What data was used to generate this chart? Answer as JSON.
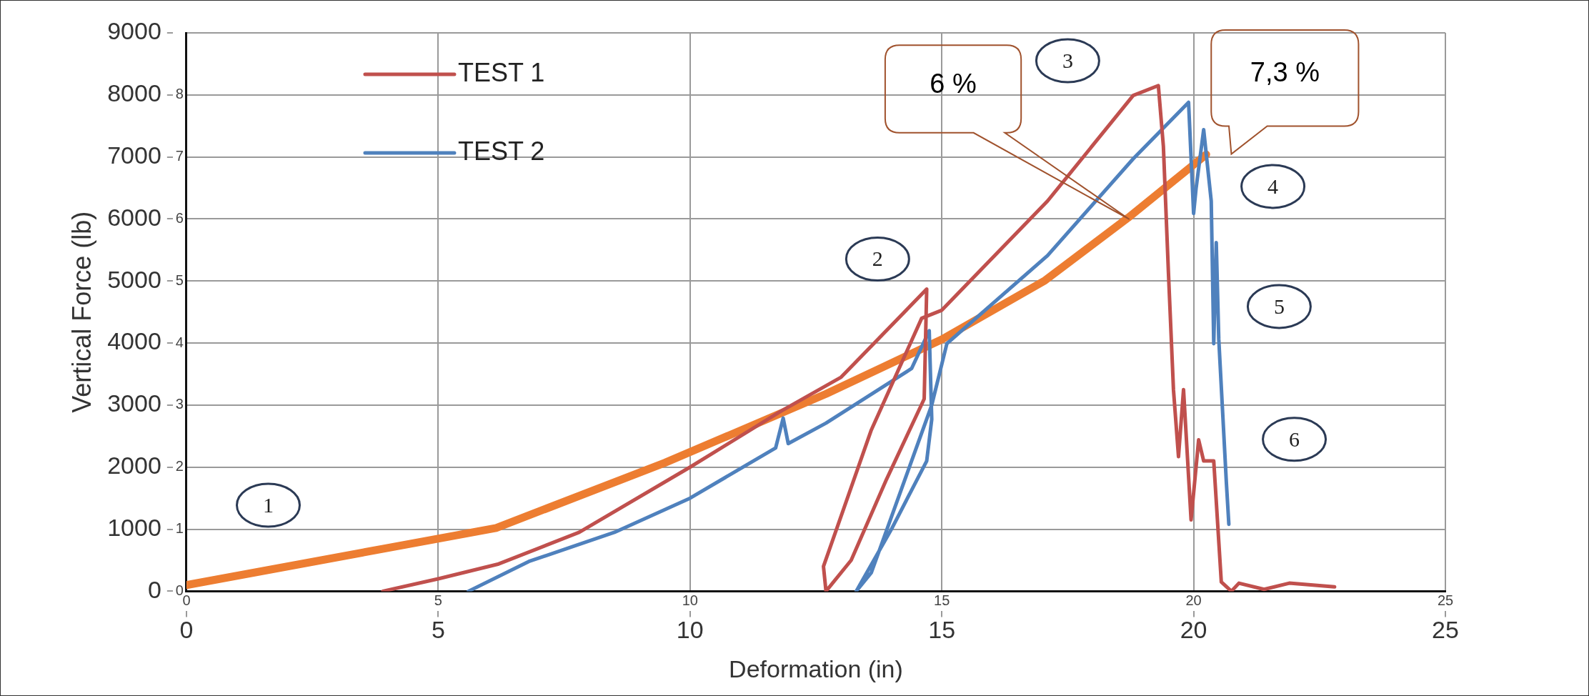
{
  "chart_data": {
    "type": "line",
    "xlabel": "Deformation (in)",
    "ylabel": "Vertical Force (lb)",
    "xlim": [
      0,
      25
    ],
    "xticks": [
      0,
      5,
      10,
      15,
      20,
      25
    ],
    "ylim": [
      0,
      9000
    ],
    "yticks": [
      0,
      1000,
      2000,
      3000,
      4000,
      5000,
      6000,
      7000,
      8000,
      9000
    ],
    "y2lim": [
      0,
      9
    ],
    "y2ticks": [
      0,
      1,
      2,
      3,
      4,
      5,
      6,
      7,
      8
    ],
    "x2lim": [
      0,
      25
    ],
    "x2ticks": [
      0,
      5,
      10,
      15,
      20,
      25
    ],
    "grid": true,
    "legend": "top left",
    "marker": "none",
    "line_style": "solid",
    "series": [
      {
        "name": "TEST 1",
        "color": "#c0504d",
        "x": [
          3.9,
          5,
          6.2,
          7.8,
          10,
          11.8,
          13,
          14.7,
          14.65,
          13.9,
          13.2,
          12.7,
          12.65,
          13.6,
          14.6,
          15,
          17.1,
          18.8,
          19.3,
          19.4,
          19.5,
          19.6,
          19.7,
          19.8,
          19.95,
          20.1,
          20.2,
          20.4,
          20.55,
          20.75,
          20.9,
          21.4,
          21.9,
          22.8
        ],
        "values": [
          0,
          200,
          440,
          950,
          2000,
          2900,
          3450,
          4870,
          3100,
          1800,
          500,
          0,
          400,
          2600,
          4400,
          4530,
          6290,
          7990,
          8150,
          7170,
          5140,
          3250,
          2170,
          3250,
          1150,
          2440,
          2100,
          2100,
          150,
          0,
          130,
          30,
          130,
          70
        ]
      },
      {
        "name": "TEST 2",
        "color": "#4f81bd",
        "x": [
          5.6,
          6.8,
          8.5,
          10,
          11.7,
          11.85,
          11.95,
          12.7,
          14.4,
          14.75,
          14.8,
          14.7,
          14.0,
          13.3,
          13.6,
          14.8,
          15.1,
          17.1,
          18.8,
          19.9,
          20,
          20.05,
          20.2,
          20.35,
          20.4,
          20.45,
          20.5,
          20.65,
          20.7
        ],
        "values": [
          0,
          480,
          950,
          1500,
          2310,
          2790,
          2380,
          2710,
          3590,
          4200,
          2770,
          2100,
          1000,
          0,
          300,
          3000,
          3990,
          5410,
          6970,
          7880,
          6090,
          6500,
          7440,
          6290,
          3990,
          5620,
          4060,
          1760,
          1080
        ]
      },
      {
        "color": "#ed7d31",
        "axis": "y2",
        "x": [
          0,
          6.15,
          9.5,
          12.7,
          15,
          17.05,
          18.7,
          20.25
        ],
        "values": [
          0.1,
          1.02,
          2.07,
          3.18,
          4.06,
          5.01,
          6.02,
          7.04
        ]
      }
    ],
    "annotations": [
      "1",
      "2",
      "3",
      "4",
      "5",
      "6",
      "6 %",
      "7,3 %"
    ]
  }
}
